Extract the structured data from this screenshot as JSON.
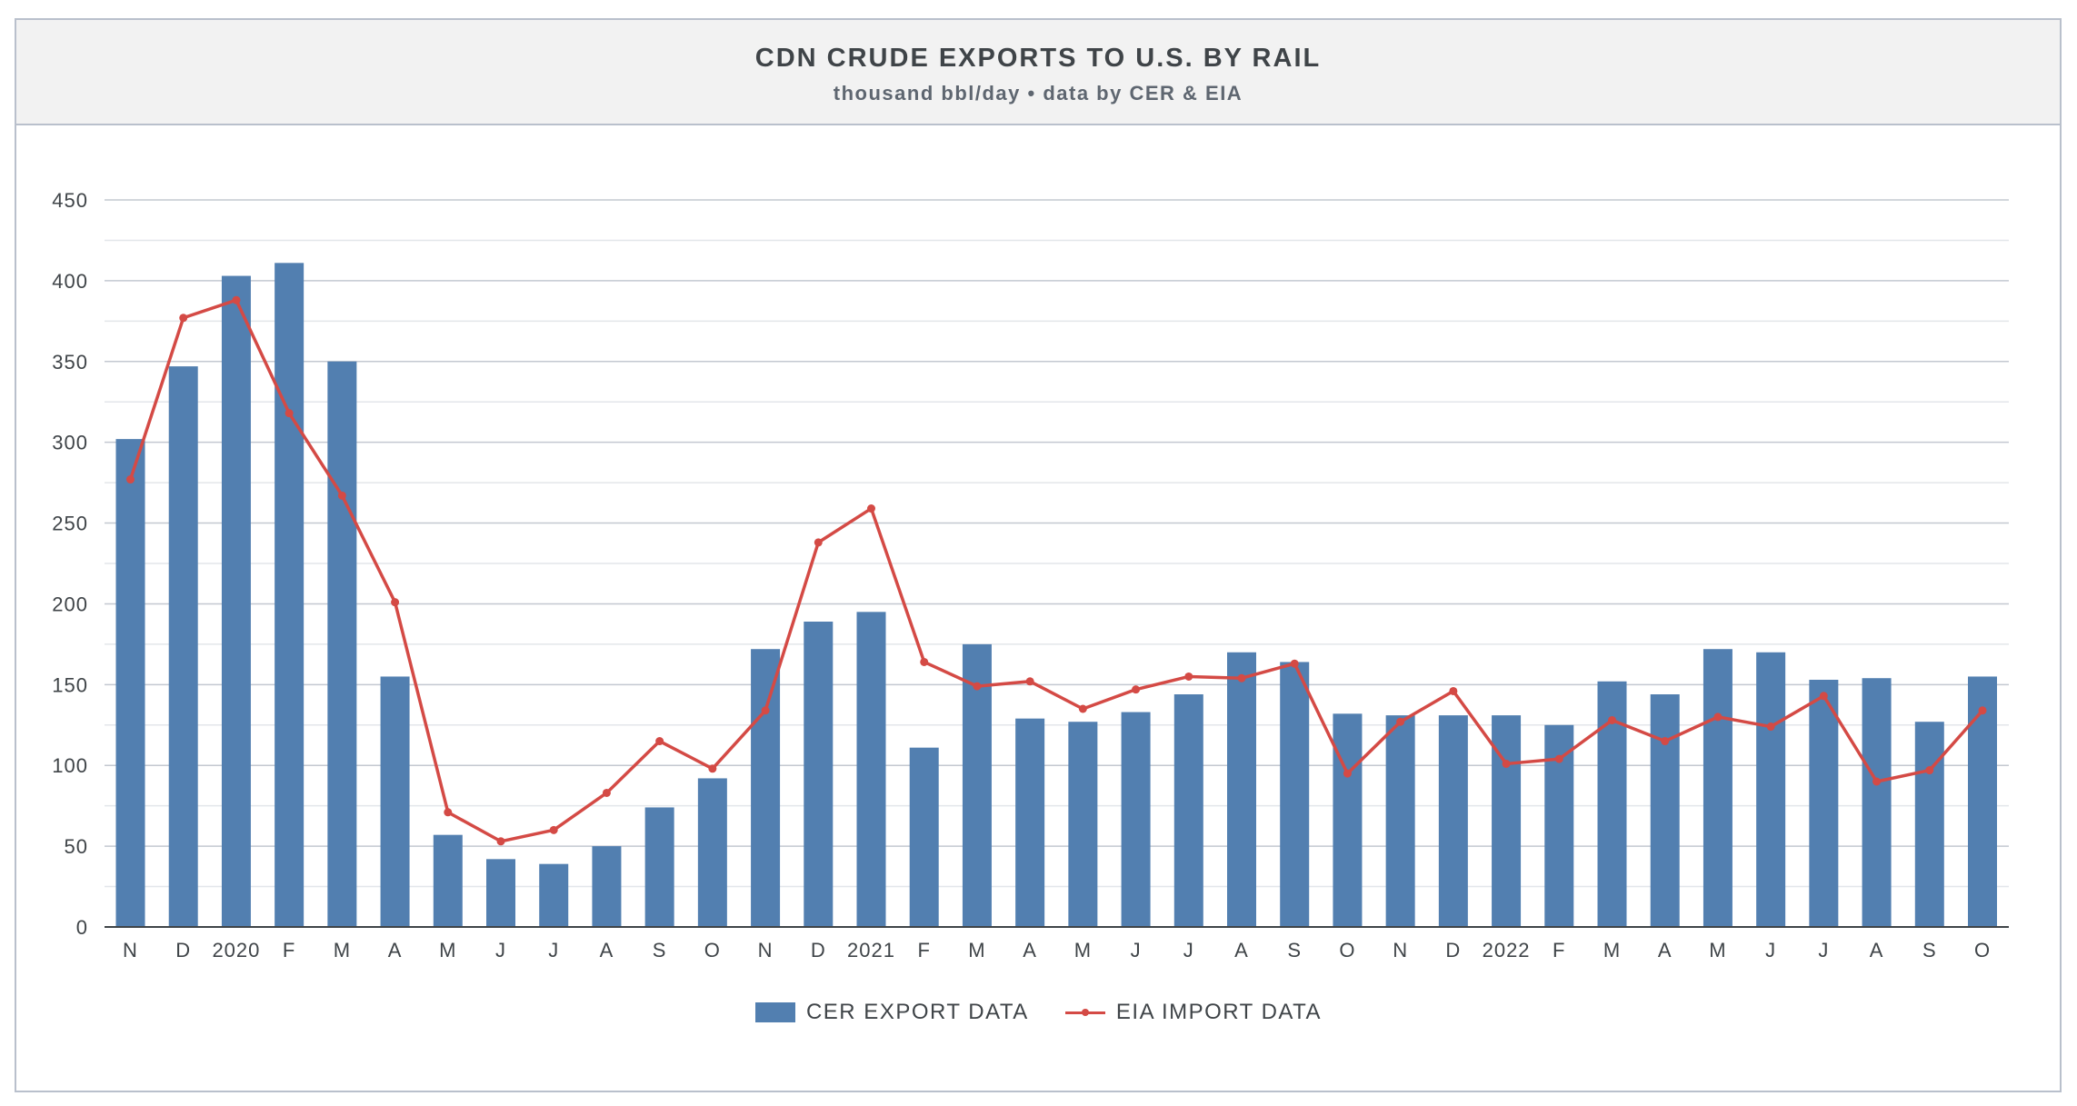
{
  "chart_data": {
    "type": "bar",
    "title": "CDN CRUDE EXPORTS TO U.S. BY RAIL",
    "subtitle": "thousand bbl/day • data by CER & EIA",
    "categories": [
      "N",
      "D",
      "2020",
      "F",
      "M",
      "A",
      "M",
      "J",
      "J",
      "A",
      "S",
      "O",
      "N",
      "D",
      "2021",
      "F",
      "M",
      "A",
      "M",
      "J",
      "J",
      "A",
      "S",
      "O",
      "N",
      "D",
      "2022",
      "F",
      "M",
      "A",
      "M",
      "J",
      "J",
      "A",
      "S",
      "O"
    ],
    "ylim": [
      0,
      450
    ],
    "yticks": [
      0,
      50,
      100,
      150,
      200,
      250,
      300,
      350,
      400,
      450
    ],
    "grid": true,
    "legend_position": "bottom",
    "series": [
      {
        "name": "CER EXPORT DATA",
        "type": "bar",
        "color": "#527fb0",
        "values": [
          302,
          347,
          403,
          411,
          350,
          155,
          57,
          42,
          39,
          50,
          74,
          92,
          172,
          189,
          195,
          111,
          175,
          129,
          127,
          133,
          144,
          170,
          164,
          132,
          131,
          131,
          131,
          125,
          152,
          144,
          172,
          170,
          153,
          154,
          127,
          155
        ]
      },
      {
        "name": "EIA IMPORT DATA",
        "type": "line",
        "color": "#d44a45",
        "values": [
          277,
          377,
          388,
          318,
          267,
          201,
          71,
          53,
          60,
          83,
          115,
          98,
          134,
          238,
          259,
          164,
          149,
          152,
          135,
          147,
          155,
          154,
          163,
          95,
          127,
          146,
          101,
          104,
          128,
          115,
          130,
          124,
          143,
          90,
          97,
          134
        ]
      }
    ]
  }
}
